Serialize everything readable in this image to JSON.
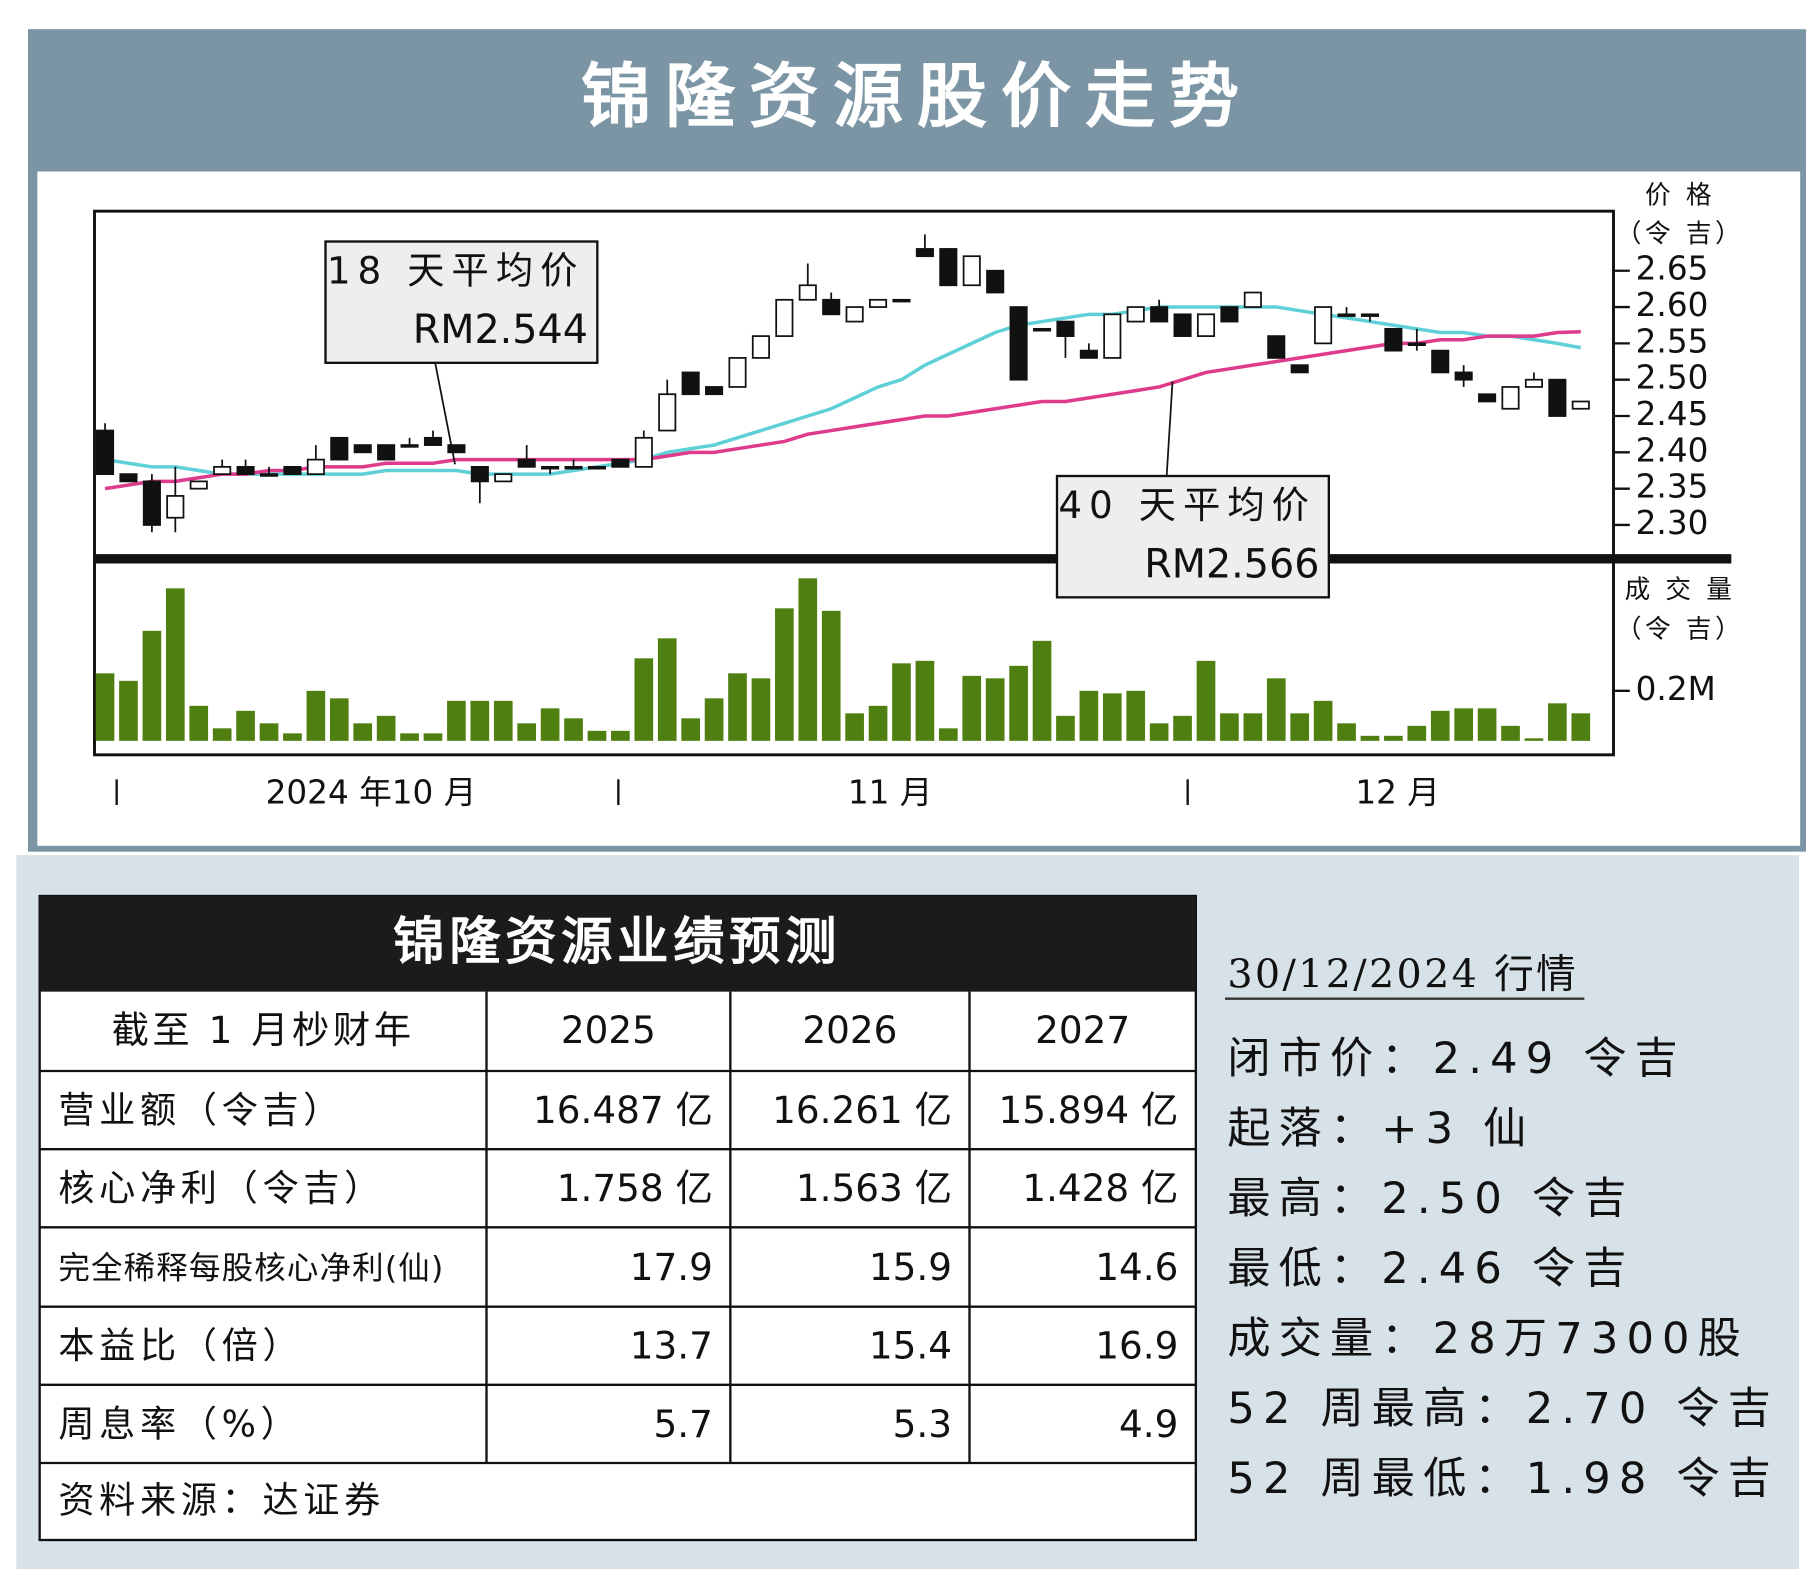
{
  "title": "锦隆资源股价走势",
  "chart_data": [
    {
      "type": "candlestick",
      "ylabel": [
        "价 格",
        "（令 吉）"
      ],
      "ylim": [
        2.255,
        2.732
      ],
      "yticks": [
        2.65,
        {
          "value": 2.6,
          "label": "2.60"
        },
        2.55,
        {
          "value": 2.5,
          "label": "2.50"
        },
        2.45,
        {
          "value": 2.4,
          "label": "2.40"
        },
        2.35,
        {
          "value": 2.3,
          "label": "2.30"
        }
      ],
      "x_labels": [
        "2024 年10 月",
        "11 月",
        "12 月"
      ],
      "open": [
        2.43,
        2.37,
        2.36,
        2.31,
        2.35,
        2.37,
        2.38,
        2.37,
        2.38,
        2.37,
        2.42,
        2.41,
        2.41,
        2.41,
        2.42,
        2.41,
        2.38,
        2.36,
        2.39,
        2.38,
        2.38,
        2.38,
        2.39,
        2.38,
        2.43,
        2.51,
        2.49,
        2.49,
        2.53,
        2.56,
        2.61,
        2.61,
        2.58,
        2.6,
        2.61,
        2.68,
        2.68,
        2.63,
        2.65,
        2.6,
        2.57,
        2.58,
        2.54,
        2.53,
        2.58,
        2.6,
        2.59,
        2.56,
        2.6,
        2.6,
        2.56,
        2.52,
        2.55,
        2.59,
        2.59,
        2.57,
        2.55,
        2.54,
        2.51,
        2.48,
        2.46,
        2.49,
        2.5,
        2.46
      ],
      "high": [
        2.44,
        2.37,
        2.37,
        2.38,
        2.36,
        2.39,
        2.39,
        2.38,
        2.38,
        2.41,
        2.42,
        2.41,
        2.41,
        2.42,
        2.43,
        2.41,
        2.38,
        2.37,
        2.41,
        2.38,
        2.39,
        2.38,
        2.39,
        2.43,
        2.5,
        2.51,
        2.49,
        2.53,
        2.56,
        2.61,
        2.66,
        2.62,
        2.6,
        2.61,
        2.61,
        2.7,
        2.68,
        2.67,
        2.65,
        2.6,
        2.57,
        2.58,
        2.55,
        2.59,
        2.6,
        2.61,
        2.59,
        2.59,
        2.6,
        2.62,
        2.56,
        2.52,
        2.6,
        2.6,
        2.59,
        2.57,
        2.57,
        2.54,
        2.52,
        2.48,
        2.49,
        2.51,
        2.5,
        2.47
      ],
      "low": [
        2.37,
        2.36,
        2.29,
        2.29,
        2.35,
        2.37,
        2.37,
        2.37,
        2.37,
        2.37,
        2.39,
        2.4,
        2.39,
        2.41,
        2.41,
        2.4,
        2.33,
        2.36,
        2.38,
        2.37,
        2.38,
        2.38,
        2.38,
        2.38,
        2.43,
        2.48,
        2.48,
        2.49,
        2.53,
        2.56,
        2.61,
        2.59,
        2.58,
        2.6,
        2.61,
        2.67,
        2.63,
        2.63,
        2.62,
        2.5,
        2.57,
        2.53,
        2.53,
        2.53,
        2.58,
        2.58,
        2.56,
        2.56,
        2.58,
        2.6,
        2.53,
        2.51,
        2.55,
        2.59,
        2.58,
        2.54,
        2.54,
        2.51,
        2.49,
        2.47,
        2.46,
        2.49,
        2.45,
        2.46
      ],
      "close": [
        2.37,
        2.36,
        2.3,
        2.34,
        2.36,
        2.38,
        2.37,
        2.37,
        2.37,
        2.39,
        2.39,
        2.4,
        2.39,
        2.41,
        2.41,
        2.4,
        2.36,
        2.37,
        2.38,
        2.38,
        2.38,
        2.38,
        2.38,
        2.42,
        2.48,
        2.48,
        2.48,
        2.53,
        2.56,
        2.61,
        2.63,
        2.59,
        2.6,
        2.61,
        2.61,
        2.67,
        2.63,
        2.67,
        2.62,
        2.5,
        2.57,
        2.56,
        2.53,
        2.59,
        2.6,
        2.58,
        2.56,
        2.59,
        2.58,
        2.62,
        2.53,
        2.51,
        2.6,
        2.59,
        2.59,
        2.54,
        2.55,
        2.51,
        2.5,
        2.47,
        2.49,
        2.5,
        2.45,
        2.47
      ],
      "series": [
        {
          "name": "18 天平均价",
          "last_label": "RM2.544",
          "color": "#5fd0d8",
          "values": [
            2.39,
            2.385,
            2.38,
            2.38,
            2.375,
            2.37,
            2.37,
            2.37,
            2.37,
            2.37,
            2.37,
            2.37,
            2.375,
            2.375,
            2.375,
            2.375,
            2.37,
            2.37,
            2.37,
            2.37,
            2.375,
            2.38,
            2.385,
            2.39,
            2.4,
            2.405,
            2.41,
            2.42,
            2.43,
            2.44,
            2.45,
            2.46,
            2.475,
            2.49,
            2.5,
            2.52,
            2.535,
            2.55,
            2.565,
            2.575,
            2.58,
            2.585,
            2.59,
            2.59,
            2.595,
            2.6,
            2.6,
            2.6,
            2.6,
            2.6,
            2.6,
            2.595,
            2.59,
            2.585,
            2.58,
            2.575,
            2.57,
            2.565,
            2.565,
            2.56,
            2.56,
            2.555,
            2.55,
            2.544
          ]
        },
        {
          "name": "40 天平均价",
          "last_label": "RM2.566",
          "color": "#e03a8c",
          "values": [
            2.35,
            2.355,
            2.36,
            2.36,
            2.365,
            2.37,
            2.37,
            2.375,
            2.375,
            2.38,
            2.38,
            2.38,
            2.385,
            2.385,
            2.385,
            2.39,
            2.39,
            2.39,
            2.39,
            2.39,
            2.39,
            2.39,
            2.39,
            2.39,
            2.395,
            2.4,
            2.4,
            2.405,
            2.41,
            2.415,
            2.425,
            2.43,
            2.435,
            2.44,
            2.445,
            2.45,
            2.45,
            2.455,
            2.46,
            2.465,
            2.47,
            2.47,
            2.475,
            2.48,
            2.485,
            2.49,
            2.5,
            2.51,
            2.515,
            2.52,
            2.525,
            2.53,
            2.535,
            2.54,
            2.545,
            2.55,
            2.55,
            2.555,
            2.555,
            2.56,
            2.56,
            2.56,
            2.565,
            2.566
          ]
        }
      ]
    },
    {
      "type": "bar",
      "ylabel": [
        "成 交 量",
        "（令 吉）"
      ],
      "ylim": [
        0,
        0.7
      ],
      "yticks": [
        {
          "value": 0.2,
          "label": "0.2M"
        }
      ],
      "color": "#4f7f10",
      "values": [
        0.27,
        0.24,
        0.44,
        0.61,
        0.14,
        0.05,
        0.12,
        0.07,
        0.03,
        0.2,
        0.17,
        0.07,
        0.1,
        0.03,
        0.03,
        0.16,
        0.16,
        0.16,
        0.07,
        0.13,
        0.09,
        0.04,
        0.04,
        0.33,
        0.41,
        0.09,
        0.17,
        0.27,
        0.25,
        0.53,
        0.65,
        0.52,
        0.11,
        0.14,
        0.31,
        0.32,
        0.05,
        0.26,
        0.25,
        0.3,
        0.4,
        0.1,
        0.2,
        0.19,
        0.2,
        0.07,
        0.1,
        0.32,
        0.11,
        0.11,
        0.25,
        0.11,
        0.16,
        0.07,
        0.02,
        0.02,
        0.06,
        0.12,
        0.13,
        0.13,
        0.06,
        0.01,
        0.15,
        0.11
      ]
    }
  ],
  "table": {
    "title": "锦隆资源业绩预测",
    "header": [
      "截至 1 月杪财年",
      "2025",
      "2026",
      "2027"
    ],
    "rows": [
      [
        "营业额（令吉）",
        "16.487 亿",
        "16.261 亿",
        "15.894 亿"
      ],
      [
        "核心净利（令吉）",
        "1.758 亿",
        "1.563 亿",
        "1.428 亿"
      ],
      [
        "完全稀释每股核心净利(仙)",
        "17.9",
        "15.9",
        "14.6"
      ],
      [
        "本益比（倍）",
        "13.7",
        "15.4",
        "16.9"
      ],
      [
        "周息率（%）",
        "5.7",
        "5.3",
        "4.9"
      ]
    ],
    "source": "资料来源：达证券"
  },
  "market": {
    "title": "30/12/2024 行情",
    "lines": [
      "闭市价：2.49 令吉",
      "起落：+3 仙",
      "最高：2.50 令吉",
      "最低：2.46 令吉",
      "成交量：28万7300股",
      "52 周最高：2.70 令吉",
      "52 周最低：1.98 令吉"
    ]
  }
}
